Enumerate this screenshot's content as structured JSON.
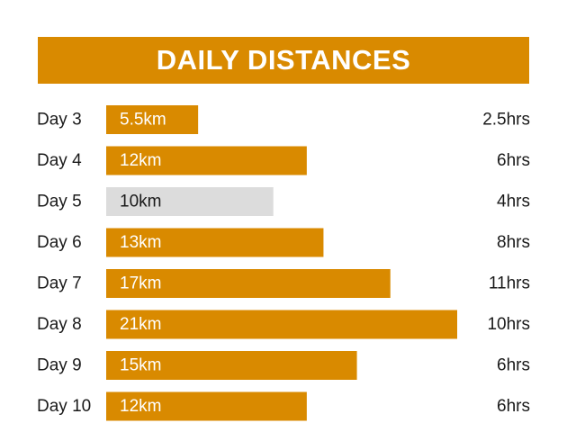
{
  "title": "DAILY DISTANCES",
  "colors": {
    "accent": "#d98a00",
    "muted": "#dcdcdc",
    "text": "#1a1a1a"
  },
  "chart_data": {
    "type": "bar",
    "orientation": "horizontal",
    "title": "DAILY DISTANCES",
    "xlabel": "",
    "ylabel": "",
    "categories": [
      "Day 3",
      "Day 4",
      "Day 5",
      "Day 6",
      "Day 7",
      "Day 8",
      "Day 9",
      "Day 10"
    ],
    "values": [
      5.5,
      12,
      10,
      13,
      17,
      21,
      15,
      12
    ],
    "value_labels": [
      "5.5km",
      "12km",
      "10km",
      "13km",
      "17km",
      "21km",
      "15km",
      "12km"
    ],
    "hours": [
      "2.5hrs",
      "6hrs",
      "4hrs",
      "8hrs",
      "11hrs",
      "10hrs",
      "6hrs",
      "6hrs"
    ],
    "highlighted": [
      true,
      true,
      false,
      true,
      true,
      true,
      true,
      true
    ],
    "xlim": [
      0,
      21
    ],
    "grid": false,
    "legend": "none"
  }
}
